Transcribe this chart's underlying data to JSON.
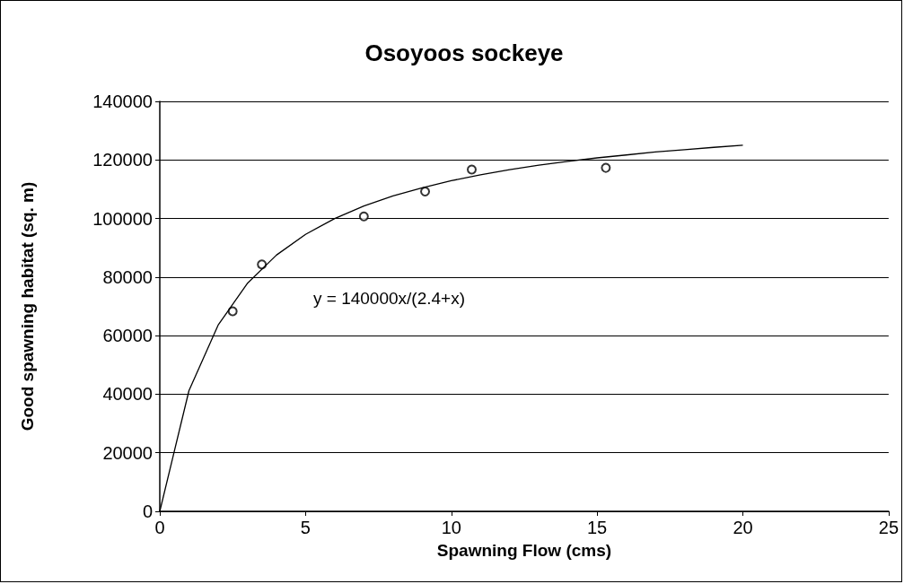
{
  "chart_data": {
    "type": "scatter",
    "title": "Osoyoos sockeye",
    "xlabel": "Spawning Flow (cms)",
    "ylabel": "Good spawning habitat (sq. m)",
    "xlim": [
      0,
      25
    ],
    "xticks": [
      0,
      5,
      10,
      15,
      20,
      25
    ],
    "ylim": [
      0,
      140000
    ],
    "yticks": [
      0,
      20000,
      40000,
      60000,
      80000,
      100000,
      120000,
      140000
    ],
    "grid": "y",
    "annotations": [
      "y = 140000x/(2.4+x)"
    ],
    "series": [
      {
        "color": "#000000",
        "marker": "circle",
        "x": [
          2.5,
          3.5,
          7.0,
          9.1,
          10.7,
          15.3
        ],
        "values": [
          68300,
          84300,
          100700,
          109200,
          116700,
          117300
        ]
      },
      {
        "type": "line",
        "color": "#000000",
        "marker": "none",
        "line_style": "solid",
        "x": [
          0,
          1,
          2,
          3,
          4,
          5,
          6,
          7,
          8,
          9,
          10,
          11,
          12,
          13,
          14,
          15,
          16,
          17,
          18,
          19,
          20
        ],
        "values": [
          0,
          41200,
          63600,
          77800,
          87500,
          94600,
          100000,
          104300,
          107700,
          110500,
          112900,
          114900,
          116700,
          118200,
          119500,
          120700,
          121700,
          122700,
          123500,
          124300,
          125000
        ]
      }
    ]
  }
}
